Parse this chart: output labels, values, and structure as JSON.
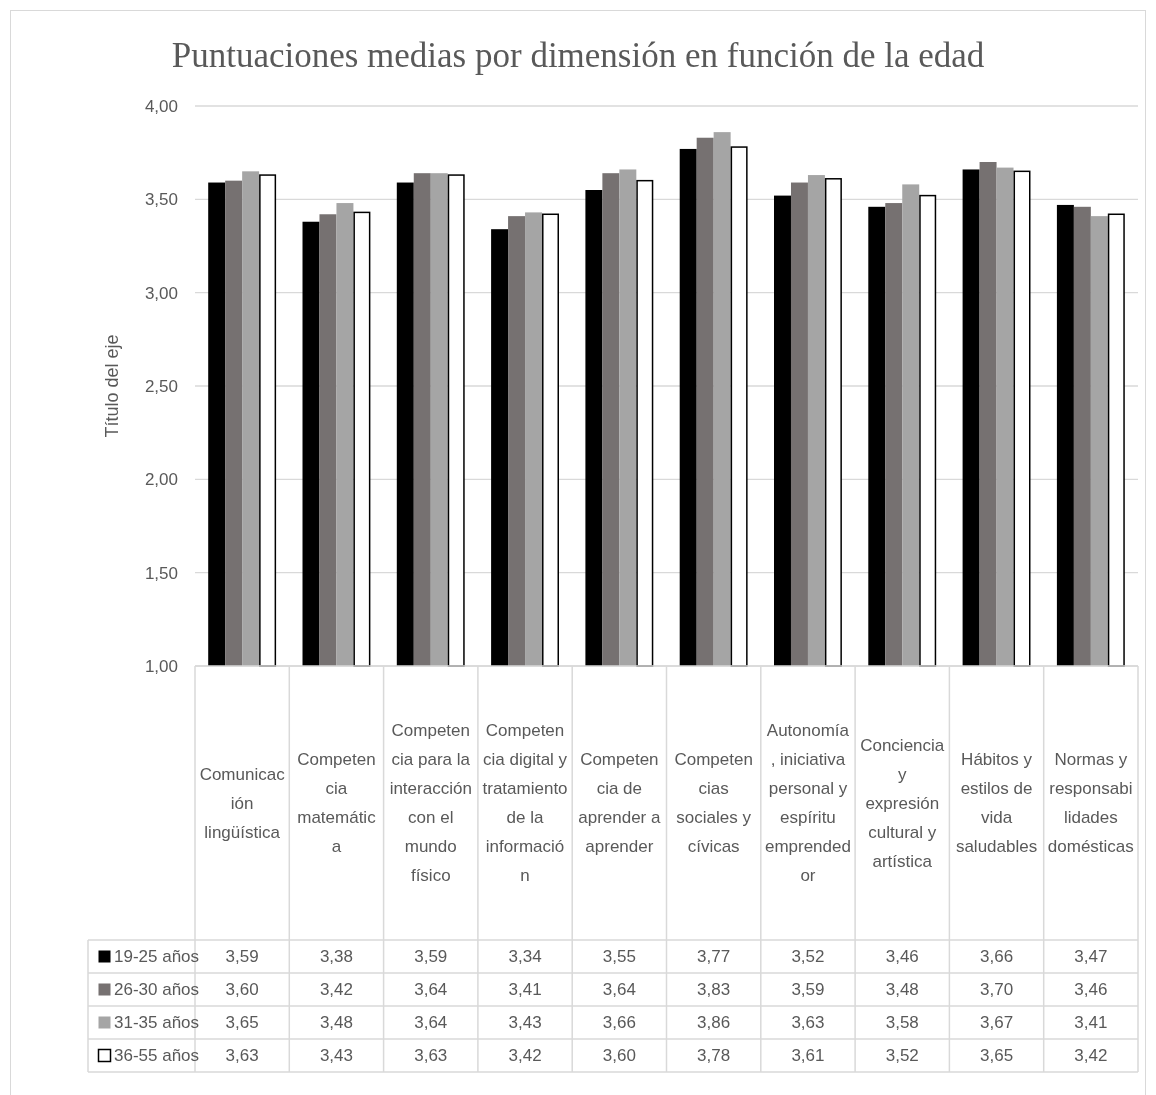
{
  "chart_data": {
    "type": "bar",
    "title": "Puntuaciones medias por dimensión en función de la edad",
    "ylabel": "Título del eje",
    "categories": [
      "Comunicación lingüística",
      "Competencia matemática",
      "Competencia para la interacción con el mundo físico",
      "Competencia digital y tratamiento de la información",
      "Competencia de aprender a aprender",
      "Competencias sociales y cívicas",
      "Autonomía, iniciativa personal y espíritu emprendedor",
      "Conciencia y expresión cultural y artística",
      "Hábitos y estilos de vida saludables",
      "Normas y responsabilidades domésticas"
    ],
    "series": [
      {
        "name": "19-25 años",
        "color": "#000000",
        "values": [
          3.59,
          3.38,
          3.59,
          3.34,
          3.55,
          3.77,
          3.52,
          3.46,
          3.66,
          3.47
        ],
        "value_labels": [
          "3,59",
          "3,38",
          "3,59",
          "3,34",
          "3,55",
          "3,77",
          "3,52",
          "3,46",
          "3,66",
          "3,47"
        ]
      },
      {
        "name": "26-30 años",
        "color": "#767171",
        "values": [
          3.6,
          3.42,
          3.64,
          3.41,
          3.64,
          3.83,
          3.59,
          3.48,
          3.7,
          3.46
        ],
        "value_labels": [
          "3,60",
          "3,42",
          "3,64",
          "3,41",
          "3,64",
          "3,83",
          "3,59",
          "3,48",
          "3,70",
          "3,46"
        ]
      },
      {
        "name": "31-35 años",
        "color": "#a5a5a5",
        "values": [
          3.65,
          3.48,
          3.64,
          3.43,
          3.66,
          3.86,
          3.63,
          3.58,
          3.67,
          3.41
        ],
        "value_labels": [
          "3,65",
          "3,48",
          "3,64",
          "3,43",
          "3,66",
          "3,86",
          "3,63",
          "3,58",
          "3,67",
          "3,41"
        ]
      },
      {
        "name": "36-55 años",
        "color": "#ffffff",
        "values": [
          3.63,
          3.43,
          3.63,
          3.42,
          3.6,
          3.78,
          3.61,
          3.52,
          3.65,
          3.42
        ],
        "value_labels": [
          "3,63",
          "3,43",
          "3,63",
          "3,42",
          "3,60",
          "3,78",
          "3,61",
          "3,52",
          "3,65",
          "3,42"
        ]
      }
    ],
    "ylim": [
      1,
      4
    ],
    "yticks": [
      {
        "value": 1,
        "label": "1,00"
      },
      {
        "value": 1.5,
        "label": "1,50"
      },
      {
        "value": 2,
        "label": "2,00"
      },
      {
        "value": 2.5,
        "label": "2,50"
      },
      {
        "value": 3,
        "label": "3,00"
      },
      {
        "value": 3.5,
        "label": "3,50"
      },
      {
        "value": 4,
        "label": "4,00"
      }
    ],
    "grid": "y",
    "legend": "bottom"
  }
}
